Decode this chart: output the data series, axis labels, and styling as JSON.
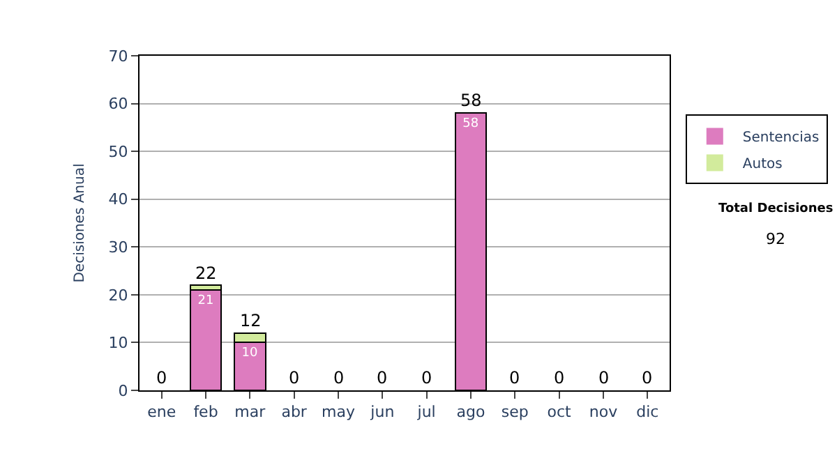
{
  "chart_data": {
    "type": "bar",
    "stacked": true,
    "ylabel": "Decisiones Anual",
    "categories": [
      "ene",
      "feb",
      "mar",
      "abr",
      "may",
      "jun",
      "jul",
      "ago",
      "sep",
      "oct",
      "nov",
      "dic"
    ],
    "series": [
      {
        "name": "Sentencias",
        "color": "#dd7cbf",
        "values": [
          0,
          21,
          10,
          0,
          0,
          0,
          0,
          58,
          0,
          0,
          0,
          0
        ],
        "value_labels": [
          null,
          "21",
          "10",
          null,
          null,
          null,
          null,
          "58",
          null,
          null,
          null,
          null
        ]
      },
      {
        "name": "Autos",
        "color": "#d2eb9c",
        "values": [
          0,
          1,
          2,
          0,
          0,
          0,
          0,
          0,
          0,
          0,
          0,
          0
        ]
      }
    ],
    "totals": [
      "0",
      "22",
      "12",
      "0",
      "0",
      "0",
      "0",
      "58",
      "0",
      "0",
      "0",
      "0"
    ],
    "ylim": [
      0,
      70
    ],
    "yticks": [
      0,
      10,
      20,
      30,
      40,
      50,
      60,
      70
    ],
    "grid": "y",
    "legend": "right",
    "annotations": [
      "Total Decisiones",
      "92"
    ]
  }
}
